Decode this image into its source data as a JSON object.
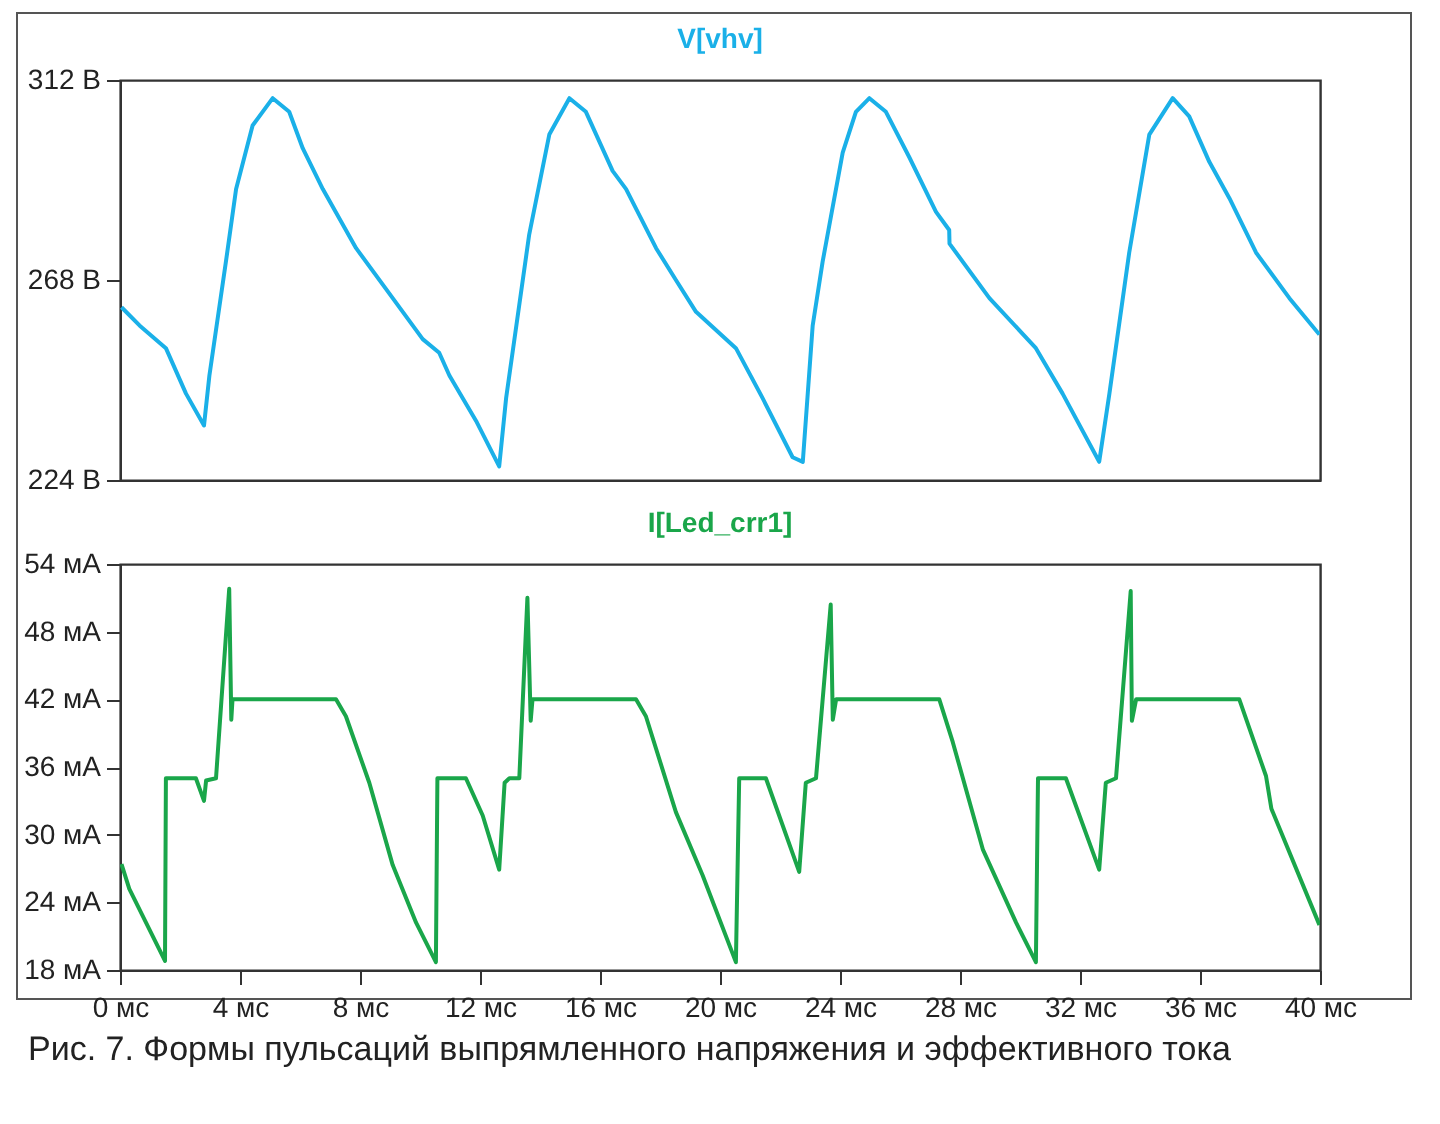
{
  "chart_data": [
    {
      "type": "line",
      "title": "V[vhv]",
      "xlim": [
        0,
        40
      ],
      "ylim": [
        224,
        312
      ],
      "yticks": [
        {
          "value": 224,
          "label": "224 В"
        },
        {
          "value": 268,
          "label": "268 В"
        },
        {
          "value": 312,
          "label": "312 В"
        }
      ],
      "tick_labels": "y",
      "series": [
        {
          "color": "#1ab0e8",
          "x": [
            0.05,
            0.65,
            1.53,
            2.2,
            2.8,
            2.98,
            3.53,
            3.87,
            4.42,
            5.09,
            5.64,
            6.09,
            6.76,
            7.87,
            8.98,
            10.09,
            10.64,
            10.98,
            11.87,
            12.64,
            12.87,
            13.64,
            14.31,
            14.98,
            15.53,
            16.42,
            16.87,
            17.87,
            18.53,
            19.2,
            20.53,
            21.42,
            22.42,
            22.76,
            23.09,
            23.42,
            24.09,
            24.53,
            24.98,
            25.53,
            26.31,
            27.2,
            27.64,
            27.65,
            28.98,
            30.53,
            31.42,
            32.64,
            32.98,
            33.64,
            34.31,
            35.09,
            35.64,
            36.31,
            36.98,
            37.87,
            38.98,
            39.98
          ],
          "values": [
            262,
            258,
            253,
            243,
            236,
            247,
            272,
            288,
            302,
            308,
            305,
            297,
            288,
            275,
            265,
            255,
            252,
            247,
            237,
            227,
            242,
            278,
            300,
            308,
            305,
            292,
            288,
            275,
            268,
            261,
            253,
            242,
            229,
            228,
            258,
            272,
            296,
            305,
            308,
            305,
            295,
            283,
            279,
            276,
            264,
            253,
            243,
            228,
            243,
            274,
            300,
            308,
            304,
            294,
            286,
            274,
            264,
            256
          ]
        }
      ]
    },
    {
      "type": "line",
      "title": "I[Led_crr1]",
      "xlim": [
        0,
        40
      ],
      "ylim": [
        18,
        54
      ],
      "xticks": [
        {
          "value": 0,
          "label": "0 мс"
        },
        {
          "value": 4,
          "label": "4 мс"
        },
        {
          "value": 8,
          "label": "8 мс"
        },
        {
          "value": 12,
          "label": "12 мс"
        },
        {
          "value": 16,
          "label": "16 мс"
        },
        {
          "value": 20,
          "label": "20 мс"
        },
        {
          "value": 24,
          "label": "24 мс"
        },
        {
          "value": 28,
          "label": "28 мс"
        },
        {
          "value": 32,
          "label": "32 мс"
        },
        {
          "value": 36,
          "label": "36 мс"
        },
        {
          "value": 40,
          "label": "40 мс"
        }
      ],
      "yticks": [
        {
          "value": 18,
          "label": "18 мА"
        },
        {
          "value": 24,
          "label": "24 мА"
        },
        {
          "value": 30,
          "label": "30 мА"
        },
        {
          "value": 36,
          "label": "36 мА"
        },
        {
          "value": 42,
          "label": "42 мА"
        },
        {
          "value": 48,
          "label": "48 мА"
        },
        {
          "value": 54,
          "label": "54 мА"
        }
      ],
      "annotations": [
        "Рис. 7. Формы пульсаций выпрямленного напряжения и эффективного тока"
      ],
      "series": [
        {
          "color": "#1aa64a",
          "x": [
            0.05,
            0.31,
            1.5,
            1.53,
            2.53,
            2.8,
            2.87,
            3.2,
            3.64,
            3.71,
            3.75,
            7.2,
            7.53,
            8.31,
            9.09,
            9.87,
            10.53,
            10.58,
            11.53,
            12.09,
            12.64,
            12.82,
            12.98,
            13.31,
            13.58,
            13.69,
            13.75,
            17.2,
            17.53,
            18.53,
            19.42,
            20.53,
            20.64,
            21.53,
            22.64,
            22.86,
            23.2,
            23.69,
            23.76,
            23.87,
            27.31,
            27.76,
            28.76,
            29.87,
            30.53,
            30.6,
            31.53,
            32.64,
            32.86,
            33.2,
            33.69,
            33.73,
            33.87,
            37.31,
            38.2,
            38.38,
            39.98
          ],
          "values": [
            27.4,
            25.2,
            18.8,
            35,
            35,
            33,
            34.8,
            35,
            51.8,
            40.2,
            42,
            42,
            40.5,
            34.6,
            27.3,
            22.2,
            18.7,
            35,
            35,
            31.7,
            26.9,
            34.6,
            35,
            35,
            51,
            40.1,
            42,
            42,
            40.5,
            32,
            26.4,
            18.7,
            35,
            35,
            26.7,
            34.6,
            35,
            50.4,
            40.2,
            42,
            42,
            38.2,
            28.7,
            22.2,
            18.7,
            35,
            35,
            26.9,
            34.6,
            35,
            51.6,
            40.1,
            42,
            42,
            35.2,
            32.3,
            22
          ]
        }
      ]
    }
  ]
}
